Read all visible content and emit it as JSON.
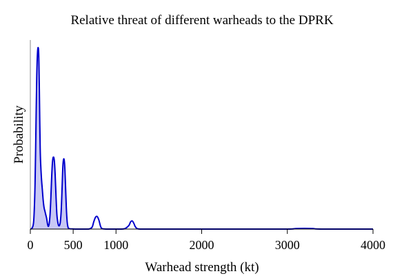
{
  "chart_data": {
    "type": "area",
    "title": "Relative threat of different warheads to the DPRK",
    "xlabel": "Warhead strength (kt)",
    "ylabel": "Probability",
    "xlim": [
      0,
      4000
    ],
    "ylim": [
      0,
      1.05
    ],
    "x_ticks": [
      0,
      500,
      1000,
      2000,
      3000,
      4000
    ],
    "x_tick_labels": [
      "0",
      "500",
      "1000",
      "2000",
      "3000",
      "4000"
    ],
    "y_ticks_shown": false,
    "grid": false,
    "legend": "none",
    "colors": {
      "line": "#0000cc",
      "fill": "#c8c8f5",
      "axis": "#888888"
    },
    "fill_range_kt": [
      0,
      500
    ],
    "series": [
      {
        "x": [
          0,
          20,
          40,
          55,
          65,
          75,
          85,
          95,
          100,
          105,
          110,
          115,
          120,
          130,
          140,
          150,
          160,
          170,
          180,
          190,
          200,
          210,
          220,
          230,
          240,
          250,
          260,
          270,
          280,
          290,
          300,
          310,
          320,
          330,
          340,
          350,
          360,
          370,
          380,
          390,
          400,
          410,
          420,
          430,
          440,
          450,
          460,
          470,
          480,
          490,
          500,
          520,
          540,
          560,
          600,
          680,
          720,
          740,
          760,
          780,
          800,
          820,
          840,
          900,
          1040,
          1100,
          1150,
          1170,
          1190,
          1210,
          1230,
          1280,
          1500,
          2000,
          2500,
          3000,
          3100,
          3200,
          3300,
          3400,
          4000
        ],
        "y": [
          0.0,
          0.005,
          0.05,
          0.25,
          0.55,
          0.85,
          0.99,
          1.0,
          0.93,
          0.78,
          0.6,
          0.45,
          0.37,
          0.28,
          0.22,
          0.16,
          0.12,
          0.1,
          0.08,
          0.06,
          0.03,
          0.015,
          0.03,
          0.08,
          0.18,
          0.3,
          0.38,
          0.4,
          0.38,
          0.3,
          0.18,
          0.08,
          0.04,
          0.02,
          0.02,
          0.04,
          0.1,
          0.22,
          0.35,
          0.39,
          0.36,
          0.25,
          0.12,
          0.04,
          0.01,
          0.003,
          0.002,
          0.001,
          0.001,
          0.001,
          0.001,
          0.0,
          0.0,
          0.0,
          0.0,
          0.0,
          0.01,
          0.04,
          0.065,
          0.07,
          0.05,
          0.015,
          0.002,
          0.0,
          0.0,
          0.002,
          0.02,
          0.04,
          0.045,
          0.03,
          0.01,
          0.0,
          0.0,
          0.0,
          0.0,
          0.0,
          0.003,
          0.004,
          0.003,
          0.0,
          0.0
        ]
      }
    ]
  }
}
